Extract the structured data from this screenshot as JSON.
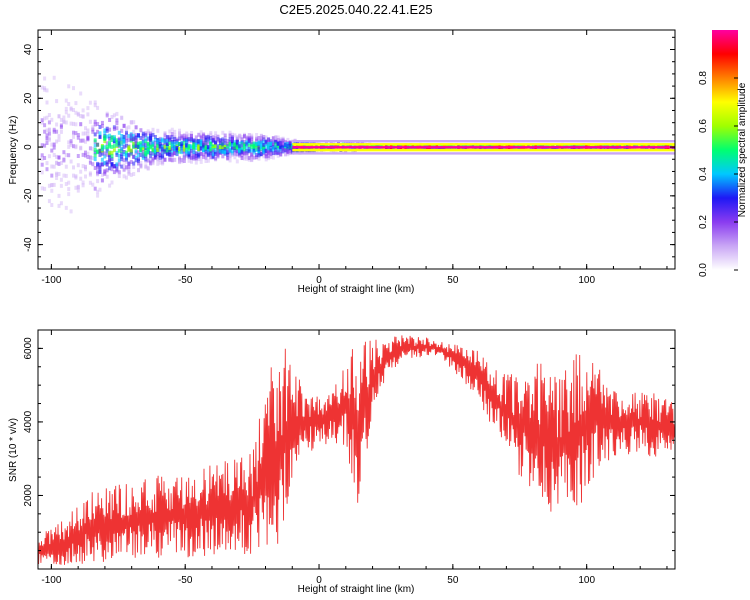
{
  "title": "C2E5.2025.040.22.41.E25",
  "chart_data": [
    {
      "type": "heatmap",
      "xlabel": "Height of straight line (km)",
      "ylabel": "Frequency (Hz)",
      "xlim": [
        -105,
        133
      ],
      "ylim": [
        -50,
        48
      ],
      "xticks": [
        -100,
        -50,
        0,
        50,
        100
      ],
      "yticks": [
        -40,
        -20,
        0,
        20,
        40
      ],
      "colorbar": {
        "label": "Normalized spectral amplitude",
        "range": [
          0,
          1
        ],
        "ticks": [
          "0.0",
          "0.2",
          "0.4",
          "0.6",
          "0.8"
        ],
        "colormap": [
          "#ffffff",
          "#c9a6f5",
          "#8a3cf0",
          "#1e18f5",
          "#00c8ff",
          "#00ff70",
          "#a0ff00",
          "#ffff00",
          "#ff8000",
          "#ff0000",
          "#ff00a0"
        ]
      },
      "description_points": {
        "x": [
          -100,
          -80,
          -60,
          -40,
          -20,
          -10,
          0,
          10,
          20,
          50,
          100,
          130
        ],
        "peak_frequency_hz": [
          0,
          0,
          0,
          0,
          0,
          0,
          0,
          0,
          0,
          0,
          0,
          0
        ],
        "spread_hz": [
          45,
          18,
          8,
          7,
          6,
          3,
          1.5,
          2,
          1,
          1,
          1,
          1
        ]
      }
    },
    {
      "type": "line",
      "xlabel": "Height of straight line (km)",
      "ylabel": "SNR (10 * v/v)",
      "xlim": [
        -105,
        133
      ],
      "ylim": [
        0,
        6500
      ],
      "xticks": [
        -100,
        -50,
        0,
        50,
        100
      ],
      "yticks": [
        2000,
        4000,
        6000
      ],
      "color": "#ee3333",
      "envelope": {
        "x": [
          -105,
          -95,
          -85,
          -75,
          -65,
          -55,
          -45,
          -35,
          -25,
          -18,
          -13,
          -10,
          -5,
          0,
          5,
          10,
          15,
          20,
          25,
          30,
          40,
          45,
          55,
          60,
          65,
          70,
          75,
          80,
          85,
          90,
          95,
          100,
          105,
          110,
          120,
          125,
          133
        ],
        "low": [
          100,
          80,
          150,
          200,
          250,
          250,
          300,
          350,
          400,
          500,
          600,
          2500,
          3000,
          3200,
          3400,
          3300,
          1500,
          4000,
          5200,
          5600,
          5800,
          5800,
          5000,
          4500,
          3800,
          3200,
          2500,
          2000,
          1600,
          1400,
          1200,
          2000,
          2800,
          3000,
          3200,
          3000,
          3200
        ],
        "high": [
          900,
          1400,
          2100,
          2300,
          2500,
          2700,
          2700,
          3000,
          3200,
          5500,
          6200,
          5400,
          5000,
          4800,
          5000,
          5600,
          6400,
          6300,
          6200,
          6400,
          6300,
          6200,
          6100,
          5900,
          5500,
          5400,
          5200,
          5900,
          5400,
          5200,
          6000,
          6200,
          5400,
          5000,
          4800,
          4800,
          4500
        ]
      }
    }
  ]
}
